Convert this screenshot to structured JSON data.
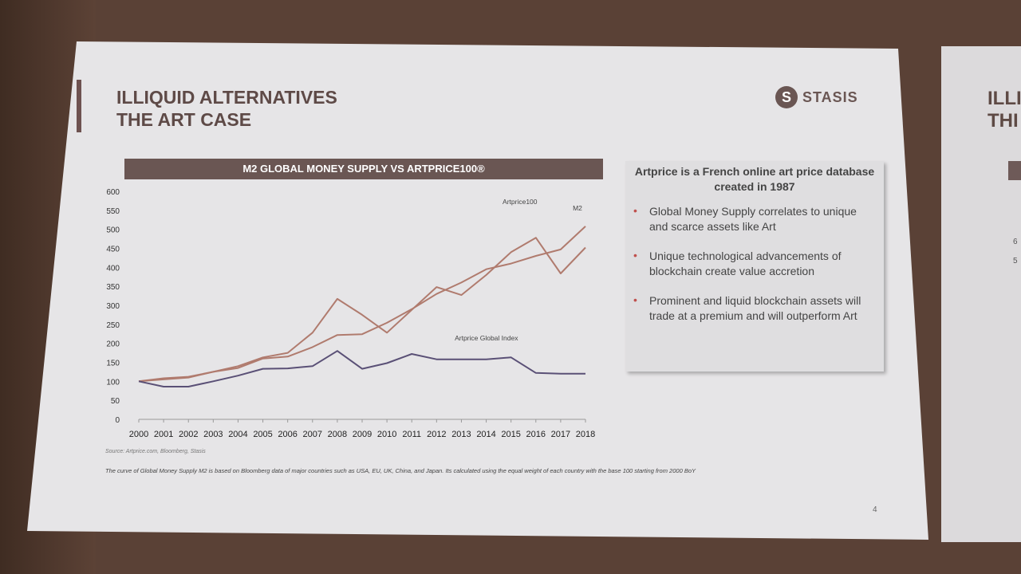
{
  "slide": {
    "title_line1": "ILLIQUID ALTERNATIVES",
    "title_line2": "THE ART CASE",
    "logo_letter": "S",
    "logo_text": "STASIS",
    "chart_title": "M2 GLOBAL MONEY SUPPLY VS ARTPRICE100®",
    "source": "Source: Artprice.com, Bloomberg, Stasis",
    "note": "The curve of Global Money Supply M2 is based on Bloomberg data of major countries such as USA, EU, UK, China, and Japan. Its calculated using the equal weight of each country with the base 100 starting from 2000 BoY",
    "page_number": "4"
  },
  "info_box": {
    "heading": "Artprice is a French online art price database created in 1987",
    "bullets": [
      "Global Money Supply correlates to unique and scarce assets like Art",
      "Unique technological advancements of blockchain create value accretion",
      "Prominent and liquid blockchain assets will trade at a premium and will outperform Art"
    ]
  },
  "next_slide": {
    "title_line1": "ILLI",
    "title_line2": "THI",
    "tick_a": "6",
    "tick_b": "5"
  },
  "colors": {
    "accent": "#6a5653",
    "line_brown": "#b07b6e",
    "line_dark": "#5a5076",
    "bullet": "#c0504d"
  },
  "chart_data": {
    "type": "line",
    "x": [
      "2000",
      "2001",
      "2002",
      "2003",
      "2004",
      "2005",
      "2006",
      "2007",
      "2008",
      "2009",
      "2010",
      "2011",
      "2012",
      "2013",
      "2014",
      "2015",
      "2016",
      "2017",
      "2018"
    ],
    "ylim": [
      0,
      600
    ],
    "yticks": [
      0,
      50,
      100,
      150,
      200,
      250,
      300,
      350,
      400,
      450,
      500,
      550,
      600
    ],
    "series": [
      {
        "name": "M2",
        "color": "#b07b6e",
        "values": [
          100,
          108,
          112,
          125,
          135,
          160,
          165,
          190,
          222,
          224,
          254,
          290,
          330,
          360,
          395,
          410,
          430,
          447,
          508
        ]
      },
      {
        "name": "Artprice100",
        "color": "#b07b6e",
        "values": [
          100,
          105,
          110,
          125,
          140,
          163,
          175,
          228,
          317,
          275,
          228,
          288,
          348,
          327,
          380,
          440,
          478,
          384,
          452
        ]
      },
      {
        "name": "Artprice Global Index",
        "color": "#5a5076",
        "values": [
          100,
          86,
          86,
          100,
          115,
          133,
          134,
          140,
          180,
          133,
          148,
          172,
          158,
          158,
          158,
          163,
          122,
          120,
          120
        ]
      }
    ],
    "series_label_near": {
      "M2": 2018,
      "Artprice100": 2016,
      "Artprice Global Index": 2016
    }
  }
}
